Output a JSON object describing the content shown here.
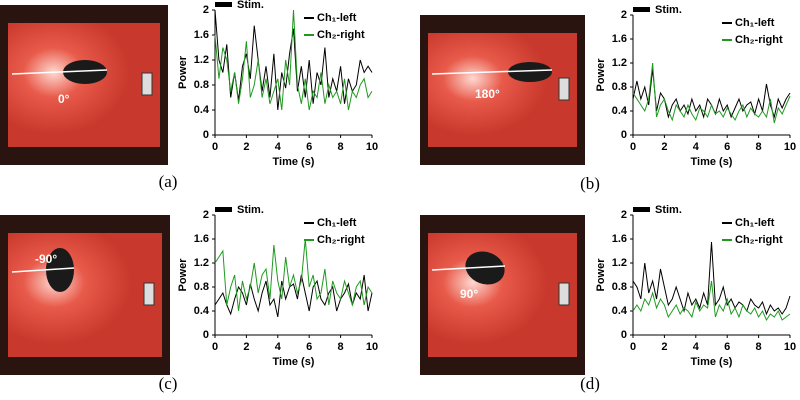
{
  "chart_data": [
    {
      "type": "line",
      "panel_label": "(a)",
      "photo_label": "0°",
      "stimulus": {
        "name": "Stim.",
        "color": "#000000"
      },
      "xlabel": "Time (s)",
      "ylabel": "Power",
      "xlim": [
        0,
        10
      ],
      "ylim": [
        0,
        2
      ],
      "xticks": [
        0,
        2,
        4,
        6,
        8,
        10
      ],
      "yticks": [
        0,
        0.4,
        0.8,
        1.2,
        1.6,
        2
      ],
      "legend": "upper right",
      "x": [
        0,
        0.25,
        0.5,
        0.75,
        1,
        1.25,
        1.5,
        1.75,
        2,
        2.25,
        2.5,
        2.75,
        3,
        3.25,
        3.5,
        3.75,
        4,
        4.25,
        4.5,
        4.75,
        5,
        5.25,
        5.5,
        5.75,
        6,
        6.25,
        6.5,
        6.75,
        7,
        7.25,
        7.5,
        7.75,
        8,
        8.25,
        8.5,
        8.75,
        9,
        9.25,
        9.5,
        9.75,
        10
      ],
      "series": [
        {
          "name": "Ch₁-left",
          "color": "#000000",
          "values": [
            2.0,
            1.2,
            1.0,
            1.45,
            0.6,
            1.0,
            0.55,
            1.1,
            1.3,
            0.9,
            1.75,
            1.2,
            0.7,
            1.1,
            0.6,
            1.3,
            0.4,
            1.0,
            0.75,
            1.3,
            1.7,
            0.7,
            1.1,
            0.6,
            1.2,
            0.5,
            1.0,
            0.8,
            1.4,
            0.6,
            0.9,
            0.7,
            1.1,
            0.5,
            0.9,
            0.7,
            0.8,
            1.2,
            1.0,
            1.1,
            1.0
          ]
        },
        {
          "name": "Ch₂-right",
          "color": "#1f9a1f",
          "values": [
            1.6,
            0.9,
            1.4,
            1.2,
            0.7,
            1.0,
            0.5,
            0.9,
            1.5,
            0.6,
            0.8,
            1.2,
            0.6,
            0.9,
            0.5,
            0.7,
            0.9,
            0.4,
            1.2,
            0.8,
            2.0,
            0.8,
            0.5,
            0.9,
            0.4,
            0.7,
            0.6,
            1.0,
            0.5,
            0.8,
            0.6,
            0.7,
            0.5,
            0.9,
            0.4,
            0.7,
            0.6,
            0.8,
            0.9,
            0.6,
            0.7
          ]
        }
      ]
    },
    {
      "type": "line",
      "panel_label": "(b)",
      "photo_label": "180°",
      "stimulus": {
        "name": "Stim.",
        "color": "#000000"
      },
      "xlabel": "Time (s)",
      "ylabel": "Power",
      "xlim": [
        0,
        10
      ],
      "ylim": [
        0,
        2
      ],
      "xticks": [
        0,
        2,
        4,
        6,
        8,
        10
      ],
      "yticks": [
        0,
        0.4,
        0.8,
        1.2,
        1.6,
        2
      ],
      "legend": "upper right",
      "x": [
        0,
        0.25,
        0.5,
        0.75,
        1,
        1.25,
        1.5,
        1.75,
        2,
        2.25,
        2.5,
        2.75,
        3,
        3.25,
        3.5,
        3.75,
        4,
        4.25,
        4.5,
        4.75,
        5,
        5.25,
        5.5,
        5.75,
        6,
        6.25,
        6.5,
        6.75,
        7,
        7.25,
        7.5,
        7.75,
        8,
        8.25,
        8.5,
        8.75,
        9,
        9.25,
        9.5,
        9.75,
        10
      ],
      "series": [
        {
          "name": "Ch₁-left",
          "color": "#000000",
          "values": [
            0.6,
            0.9,
            0.6,
            0.8,
            0.5,
            1.1,
            0.4,
            0.7,
            0.6,
            0.3,
            0.5,
            0.6,
            0.4,
            0.5,
            0.35,
            0.6,
            0.4,
            0.5,
            0.3,
            0.6,
            0.5,
            0.35,
            0.6,
            0.4,
            0.5,
            0.3,
            0.45,
            0.6,
            0.4,
            0.5,
            0.55,
            0.35,
            0.6,
            0.4,
            0.85,
            0.5,
            0.3,
            0.6,
            0.45,
            0.6,
            0.7
          ]
        },
        {
          "name": "Ch₂-right",
          "color": "#1f9a1f",
          "values": [
            0.7,
            0.6,
            0.5,
            0.4,
            0.6,
            1.2,
            0.3,
            0.5,
            0.6,
            0.4,
            0.25,
            0.5,
            0.4,
            0.3,
            0.5,
            0.35,
            0.25,
            0.45,
            0.4,
            0.3,
            0.5,
            0.35,
            0.4,
            0.3,
            0.45,
            0.35,
            0.25,
            0.4,
            0.5,
            0.3,
            0.45,
            0.35,
            0.3,
            0.4,
            0.3,
            0.6,
            0.2,
            0.45,
            0.35,
            0.5,
            0.65
          ]
        }
      ]
    },
    {
      "type": "line",
      "panel_label": "(c)",
      "photo_label": "-90°",
      "stimulus": {
        "name": "Stim.",
        "color": "#000000"
      },
      "xlabel": "Time (s)",
      "ylabel": "Power",
      "xlim": [
        0,
        10
      ],
      "ylim": [
        0,
        2
      ],
      "xticks": [
        0,
        2,
        4,
        6,
        8,
        10
      ],
      "yticks": [
        0,
        0.4,
        0.8,
        1.2,
        1.6,
        2
      ],
      "legend": "upper right",
      "x": [
        0,
        0.25,
        0.5,
        0.75,
        1,
        1.25,
        1.5,
        1.75,
        2,
        2.25,
        2.5,
        2.75,
        3,
        3.25,
        3.5,
        3.75,
        4,
        4.25,
        4.5,
        4.75,
        5,
        5.25,
        5.5,
        5.75,
        6,
        6.25,
        6.5,
        6.75,
        7,
        7.25,
        7.5,
        7.75,
        8,
        8.25,
        8.5,
        8.75,
        9,
        9.25,
        9.5,
        9.75,
        10
      ],
      "series": [
        {
          "name": "Ch₁-left",
          "color": "#000000",
          "values": [
            0.5,
            0.6,
            0.7,
            0.5,
            0.35,
            0.6,
            0.8,
            0.7,
            0.5,
            0.85,
            0.6,
            0.4,
            0.7,
            0.9,
            0.5,
            0.6,
            0.3,
            0.9,
            0.6,
            0.8,
            0.85,
            0.6,
            1.0,
            0.7,
            0.4,
            0.8,
            0.9,
            0.6,
            0.5,
            0.7,
            0.8,
            0.4,
            0.6,
            0.7,
            0.85,
            0.5,
            0.7,
            0.6,
            1.0,
            0.4,
            0.7
          ]
        },
        {
          "name": "Ch₂-right",
          "color": "#1f9a1f",
          "values": [
            1.2,
            1.3,
            1.4,
            0.5,
            0.8,
            1.0,
            0.4,
            0.9,
            0.6,
            0.8,
            1.2,
            0.7,
            1.0,
            1.1,
            0.6,
            1.5,
            0.9,
            0.6,
            1.3,
            0.8,
            1.0,
            0.7,
            0.9,
            1.6,
            0.8,
            1.0,
            0.6,
            0.7,
            1.1,
            0.5,
            0.9,
            0.7,
            0.6,
            0.9,
            0.7,
            0.5,
            0.8,
            0.9,
            0.5,
            0.8,
            0.7
          ]
        }
      ]
    },
    {
      "type": "line",
      "panel_label": "(d)",
      "photo_label": "90°",
      "stimulus": {
        "name": "Stim.",
        "color": "#000000"
      },
      "xlabel": "Time (s)",
      "ylabel": "Power",
      "xlim": [
        0,
        10
      ],
      "ylim": [
        0,
        2
      ],
      "xticks": [
        0,
        2,
        4,
        6,
        8,
        10
      ],
      "yticks": [
        0,
        0.4,
        0.8,
        1.2,
        1.6,
        2
      ],
      "legend": "upper right",
      "x": [
        0,
        0.25,
        0.5,
        0.75,
        1,
        1.25,
        1.5,
        1.75,
        2,
        2.25,
        2.5,
        2.75,
        3,
        3.25,
        3.5,
        3.75,
        4,
        4.25,
        4.5,
        4.75,
        5,
        5.25,
        5.5,
        5.75,
        6,
        6.25,
        6.5,
        6.75,
        7,
        7.25,
        7.5,
        7.75,
        8,
        8.25,
        8.5,
        8.75,
        9,
        9.25,
        9.5,
        9.75,
        10
      ],
      "series": [
        {
          "name": "Ch₁-left",
          "color": "#000000",
          "values": [
            0.9,
            0.8,
            0.6,
            1.2,
            0.7,
            0.9,
            0.6,
            1.1,
            0.8,
            0.5,
            0.6,
            0.8,
            0.6,
            0.4,
            0.7,
            0.5,
            0.6,
            0.45,
            0.7,
            0.5,
            1.55,
            0.5,
            0.6,
            0.8,
            0.5,
            0.6,
            0.45,
            0.55,
            0.5,
            0.4,
            0.6,
            0.5,
            0.45,
            0.55,
            0.35,
            0.5,
            0.4,
            0.45,
            0.35,
            0.45,
            0.65
          ]
        },
        {
          "name": "Ch₂-right",
          "color": "#1f9a1f",
          "values": [
            0.4,
            0.5,
            0.4,
            0.6,
            0.5,
            0.7,
            0.45,
            0.6,
            0.5,
            0.3,
            0.4,
            0.5,
            0.35,
            0.45,
            0.4,
            0.3,
            0.55,
            0.4,
            0.5,
            0.45,
            0.9,
            0.3,
            0.5,
            0.4,
            0.6,
            0.35,
            0.45,
            0.3,
            0.5,
            0.4,
            0.35,
            0.45,
            0.3,
            0.4,
            0.25,
            0.35,
            0.3,
            0.4,
            0.25,
            0.3,
            0.35
          ]
        }
      ]
    }
  ]
}
